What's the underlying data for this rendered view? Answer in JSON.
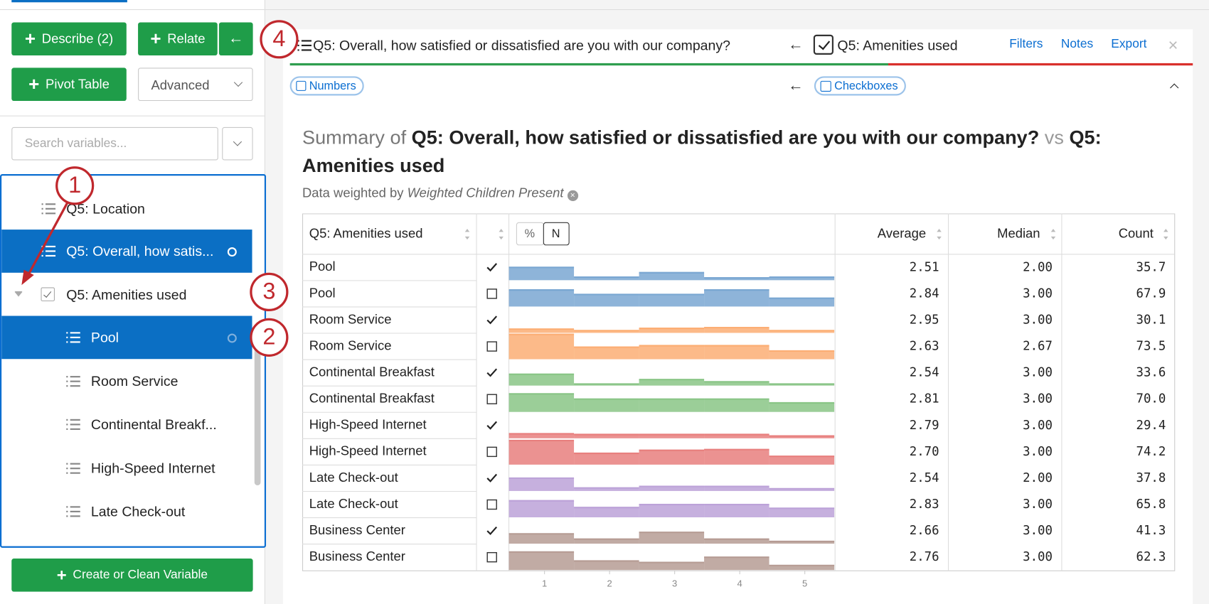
{
  "sidebar": {
    "describe": "Describe (2)",
    "relate": "Relate",
    "pivot": "Pivot Table",
    "advanced": "Advanced",
    "search_placeholder": "Search variables...",
    "variables": [
      {
        "label": "Q5: Location",
        "level": 1,
        "selected": false
      },
      {
        "label": "Q5: Overall, how satis...",
        "level": 1,
        "selected": true
      },
      {
        "label": "Q5: Amenities used",
        "level": 0,
        "selected": false
      },
      {
        "label": "Pool",
        "level": 2,
        "selected": true
      },
      {
        "label": "Room Service",
        "level": 2,
        "selected": false
      },
      {
        "label": "Continental Breakf...",
        "level": 2,
        "selected": false
      },
      {
        "label": "High-Speed Internet",
        "level": 2,
        "selected": false
      },
      {
        "label": "Late Check-out",
        "level": 2,
        "selected": false
      }
    ],
    "create": "Create or Clean Variable"
  },
  "callouts": [
    "1",
    "2",
    "3",
    "4"
  ],
  "panel": {
    "header_left": "Q5: Overall, how satisfied or dissatisfied are you with our company?",
    "header_right": "Q5: Amenities used",
    "links": [
      "Filters",
      "Notes",
      "Export"
    ],
    "type_left": "Numbers",
    "type_right": "Checkboxes",
    "title": {
      "prefix": "Summary of",
      "var1": "Q5: Overall, how satisfied or dissatisfied are you with our company?",
      "vs": "vs",
      "var2": "Q5: Amenities used"
    },
    "weight_prefix": "Data weighted by",
    "weight_name": "Weighted Children Present",
    "table": {
      "columns": [
        "Q5: Amenities used",
        "Average",
        "Median",
        "Count"
      ],
      "toggle": [
        "%",
        "N"
      ],
      "hist_ylim": [
        0,
        34
      ],
      "hist_axis": [
        1,
        2,
        3,
        4,
        5
      ],
      "rows": [
        {
          "label": "Pool",
          "checked": true,
          "color": "#7aa7d2",
          "distribution": [
            17,
            4,
            10,
            3,
            4
          ],
          "average": "2.51",
          "median": "2.00",
          "count": "35.7"
        },
        {
          "label": "Pool",
          "checked": false,
          "color": "#7aa7d2",
          "distribution": [
            22,
            16,
            16,
            22,
            11
          ],
          "average": "2.84",
          "median": "3.00",
          "count": "67.9"
        },
        {
          "label": "Room Service",
          "checked": true,
          "color": "#fcae74",
          "distribution": [
            5,
            3,
            6,
            7,
            3
          ],
          "average": "2.95",
          "median": "3.00",
          "count": "30.1"
        },
        {
          "label": "Room Service",
          "checked": false,
          "color": "#fcae74",
          "distribution": [
            33,
            16,
            18,
            18,
            11
          ],
          "average": "2.63",
          "median": "2.67",
          "count": "73.5"
        },
        {
          "label": "Continental Breakfast",
          "checked": true,
          "color": "#89c586",
          "distribution": [
            15,
            2,
            8,
            5,
            2
          ],
          "average": "2.54",
          "median": "3.00",
          "count": "33.6"
        },
        {
          "label": "Continental Breakfast",
          "checked": false,
          "color": "#89c586",
          "distribution": [
            24,
            17,
            17,
            17,
            12
          ],
          "average": "2.81",
          "median": "3.00",
          "count": "70.0"
        },
        {
          "label": "High-Speed Internet",
          "checked": true,
          "color": "#e87f7e",
          "distribution": [
            6,
            5,
            5,
            5,
            3
          ],
          "average": "2.79",
          "median": "3.00",
          "count": "29.4"
        },
        {
          "label": "High-Speed Internet",
          "checked": false,
          "color": "#e87f7e",
          "distribution": [
            32,
            15,
            19,
            20,
            11
          ],
          "average": "2.70",
          "median": "3.00",
          "count": "74.2"
        },
        {
          "label": "Late Check-out",
          "checked": true,
          "color": "#bca2d8",
          "distribution": [
            17,
            4,
            6,
            6,
            3
          ],
          "average": "2.54",
          "median": "2.00",
          "count": "37.8"
        },
        {
          "label": "Late Check-out",
          "checked": false,
          "color": "#bca2d8",
          "distribution": [
            22,
            13,
            17,
            17,
            12
          ],
          "average": "2.83",
          "median": "3.00",
          "count": "65.8"
        },
        {
          "label": "Business Center",
          "checked": true,
          "color": "#b69c94",
          "distribution": [
            13,
            6,
            15,
            6,
            3
          ],
          "average": "2.66",
          "median": "3.00",
          "count": "41.3"
        },
        {
          "label": "Business Center",
          "checked": false,
          "color": "#b69c94",
          "distribution": [
            24,
            12,
            10,
            17,
            6
          ],
          "average": "2.76",
          "median": "3.00",
          "count": "62.3"
        }
      ]
    }
  }
}
